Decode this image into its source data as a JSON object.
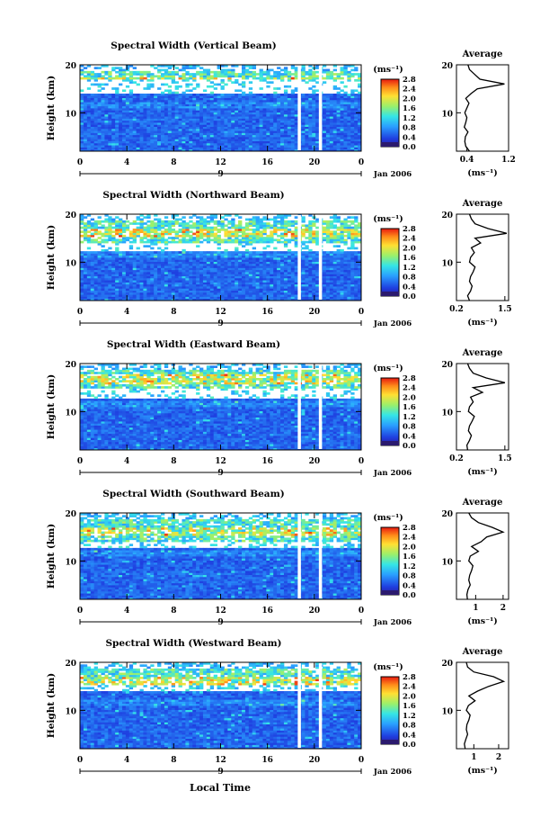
{
  "figure": {
    "x_axis_title": "Local Time",
    "date_label": "Jan 2006",
    "colorbar_unit": "(ms⁻¹)",
    "avg_title": "Average",
    "avg_unit": "(ms⁻¹)",
    "y_axis_title": "Height (km)"
  },
  "chart_data": [
    {
      "type": "heatmap",
      "title": "Spectral Width (Vertical Beam)",
      "xlabel": "Local Time",
      "ylabel": "Height (km)",
      "xlim": [
        0,
        24
      ],
      "ylim": [
        2,
        20
      ],
      "x_ticks": [
        "0",
        "4",
        "8",
        "12",
        "16",
        "20",
        "0"
      ],
      "x_sub_label": "9",
      "y_ticks": [
        "10",
        "20"
      ],
      "colorbar": {
        "unit": "(ms⁻¹)",
        "ticks": [
          "2.8",
          "2.4",
          "2.0",
          "1.6",
          "1.2",
          "0.8",
          "0.4",
          "0.0"
        ],
        "range": [
          0.0,
          2.8
        ]
      },
      "gaps_hours": [
        18.7,
        20.5
      ],
      "clear_band_km": [
        14.0,
        16.8
      ],
      "peak_layer_km": 16.5,
      "average": {
        "xlabel": "(ms⁻¹)",
        "xlim": [
          0.2,
          1.2
        ],
        "x_ticks": [
          "0.4",
          "1.2"
        ],
        "y_ticks": [
          "10",
          "20"
        ],
        "height": [
          2,
          3,
          4,
          5,
          6,
          7,
          8,
          9,
          10,
          11,
          12,
          13,
          14,
          15,
          16,
          17,
          18,
          19,
          20
        ],
        "value": [
          0.45,
          0.38,
          0.36,
          0.37,
          0.42,
          0.35,
          0.38,
          0.4,
          0.36,
          0.4,
          0.44,
          0.38,
          0.48,
          0.6,
          1.12,
          0.65,
          0.55,
          0.45,
          0.42
        ]
      }
    },
    {
      "type": "heatmap",
      "title": "Spectral Width (Northward Beam)",
      "xlabel": "Local Time",
      "ylabel": "Height (km)",
      "xlim": [
        0,
        24
      ],
      "ylim": [
        2,
        20
      ],
      "x_ticks": [
        "0",
        "4",
        "8",
        "12",
        "16",
        "20",
        "0"
      ],
      "x_sub_label": "9",
      "y_ticks": [
        "10",
        "20"
      ],
      "colorbar": {
        "unit": "(ms⁻¹)",
        "ticks": [
          "2.8",
          "2.4",
          "2.0",
          "1.6",
          "1.2",
          "0.8",
          "0.4",
          "0.0"
        ],
        "range": [
          0.0,
          2.8
        ]
      },
      "gaps_hours": [
        18.7,
        20.5
      ],
      "clear_band_km": [
        12.5,
        14.0
      ],
      "peak_layer_km": 16.2,
      "average": {
        "xlabel": "(ms⁻¹)",
        "xlim": [
          0.2,
          1.6
        ],
        "x_ticks": [
          "0.2",
          "1.5"
        ],
        "y_ticks": [
          "10",
          "20"
        ],
        "height": [
          2,
          3,
          4,
          5,
          6,
          7,
          8,
          9,
          10,
          11,
          12,
          13,
          14,
          15,
          16,
          17,
          18,
          19,
          20
        ],
        "value": [
          0.55,
          0.5,
          0.58,
          0.62,
          0.55,
          0.58,
          0.65,
          0.7,
          0.55,
          0.58,
          0.68,
          0.6,
          0.85,
          0.7,
          1.55,
          1.05,
          0.7,
          0.6,
          0.55
        ]
      }
    },
    {
      "type": "heatmap",
      "title": "Spectral Width (Eastward Beam)",
      "xlabel": "Local Time",
      "ylabel": "Height (km)",
      "xlim": [
        0,
        24
      ],
      "ylim": [
        2,
        20
      ],
      "x_ticks": [
        "0",
        "4",
        "8",
        "12",
        "16",
        "20",
        "0"
      ],
      "x_sub_label": "9",
      "y_ticks": [
        "10",
        "20"
      ],
      "colorbar": {
        "unit": "(ms⁻¹)",
        "ticks": [
          "2.8",
          "2.4",
          "2.0",
          "1.6",
          "1.2",
          "0.8",
          "0.4",
          "0.0"
        ],
        "range": [
          0.0,
          2.8
        ]
      },
      "gaps_hours": [
        18.7,
        20.5
      ],
      "clear_band_km": [
        12.8,
        15.0
      ],
      "peak_layer_km": 16.8,
      "average": {
        "xlabel": "(ms⁻¹)",
        "xlim": [
          0.2,
          1.6
        ],
        "x_ticks": [
          "0.2",
          "1.5"
        ],
        "y_ticks": [
          "10",
          "20"
        ],
        "height": [
          2,
          3,
          4,
          5,
          6,
          7,
          8,
          9,
          10,
          11,
          12,
          13,
          14,
          15,
          16,
          17,
          18,
          19,
          20
        ],
        "value": [
          0.5,
          0.48,
          0.55,
          0.6,
          0.52,
          0.55,
          0.62,
          0.68,
          0.52,
          0.55,
          0.65,
          0.58,
          0.9,
          0.65,
          1.5,
          1.0,
          0.65,
          0.55,
          0.5
        ]
      }
    },
    {
      "type": "heatmap",
      "title": "Spectral Width (Southward Beam)",
      "xlabel": "Local Time",
      "ylabel": "Height (km)",
      "xlim": [
        0,
        24
      ],
      "ylim": [
        2,
        20
      ],
      "x_ticks": [
        "0",
        "4",
        "8",
        "12",
        "16",
        "20",
        "0"
      ],
      "x_sub_label": "9",
      "y_ticks": [
        "10",
        "20"
      ],
      "colorbar": {
        "unit": "(ms⁻¹)",
        "ticks": [
          "2.8",
          "2.4",
          "2.0",
          "1.6",
          "1.2",
          "0.8",
          "0.4",
          "0.0"
        ],
        "range": [
          0.0,
          2.8
        ]
      },
      "gaps_hours": [
        18.7,
        20.5
      ],
      "clear_band_km": [
        12.8,
        14.2
      ],
      "peak_layer_km": 16.0,
      "average": {
        "xlabel": "(ms⁻¹)",
        "xlim": [
          0.3,
          2.2
        ],
        "x_ticks": [
          "1",
          "2"
        ],
        "y_ticks": [
          "10",
          "20"
        ],
        "height": [
          2,
          3,
          4,
          5,
          6,
          7,
          8,
          9,
          10,
          11,
          12,
          13,
          14,
          15,
          16,
          17,
          18,
          19,
          20
        ],
        "value": [
          0.7,
          0.68,
          0.72,
          0.8,
          0.75,
          0.78,
          0.85,
          0.9,
          0.75,
          0.8,
          1.1,
          0.85,
          1.2,
          1.4,
          2.0,
          1.6,
          1.1,
          0.85,
          0.75
        ]
      }
    },
    {
      "type": "heatmap",
      "title": "Spectral Width (Westward Beam)",
      "xlabel": "Local Time",
      "ylabel": "Height (km)",
      "xlim": [
        0,
        24
      ],
      "ylim": [
        2,
        20
      ],
      "x_ticks": [
        "0",
        "4",
        "8",
        "12",
        "16",
        "20",
        "0"
      ],
      "x_sub_label": "9",
      "y_ticks": [
        "10",
        "20"
      ],
      "colorbar": {
        "unit": "(ms⁻¹)",
        "ticks": [
          "2.8",
          "2.4",
          "2.0",
          "1.6",
          "1.2",
          "0.8",
          "0.4",
          "0.0"
        ],
        "range": [
          0.0,
          2.8
        ]
      },
      "gaps_hours": [
        18.7,
        20.5
      ],
      "clear_band_km": [
        14.2,
        15.2
      ],
      "peak_layer_km": 16.2,
      "average": {
        "xlabel": "(ms⁻¹)",
        "xlim": [
          0.3,
          2.4
        ],
        "x_ticks": [
          "1",
          "2"
        ],
        "y_ticks": [
          "10",
          "20"
        ],
        "height": [
          2,
          3,
          4,
          5,
          6,
          7,
          8,
          9,
          10,
          11,
          12,
          13,
          14,
          15,
          16,
          17,
          18,
          19,
          20
        ],
        "value": [
          0.65,
          0.62,
          0.68,
          0.75,
          0.7,
          0.72,
          0.8,
          0.85,
          0.7,
          0.78,
          1.05,
          0.8,
          1.15,
          1.6,
          2.2,
          1.8,
          1.0,
          0.75,
          0.7
        ]
      }
    }
  ]
}
